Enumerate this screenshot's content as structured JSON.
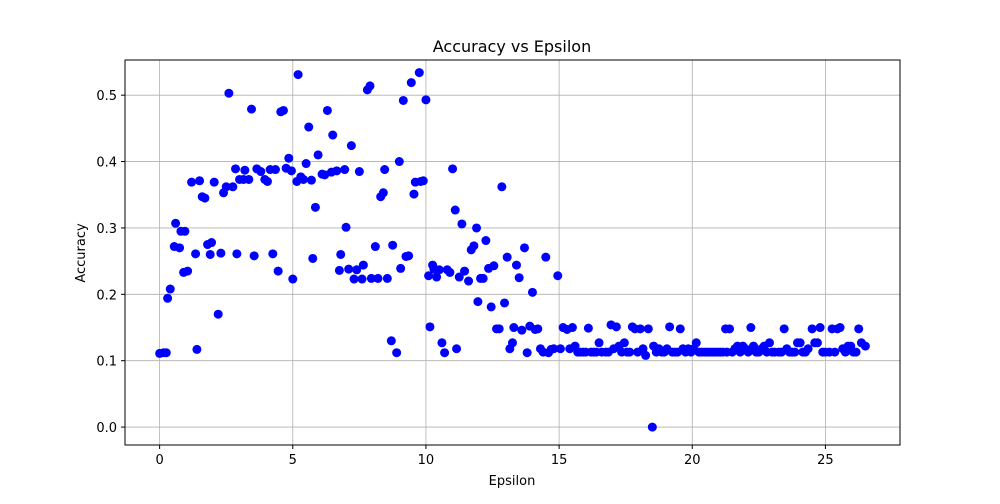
{
  "chart_data": {
    "type": "scatter",
    "title": "Accuracy vs Epsilon",
    "xlabel": "Epsilon",
    "ylabel": "Accuracy",
    "xlim": [
      -1.3,
      27.8
    ],
    "ylim": [
      -0.027,
      0.553
    ],
    "xticks": [
      0,
      5,
      10,
      15,
      20,
      25
    ],
    "yticks": [
      0.0,
      0.1,
      0.2,
      0.3,
      0.4,
      0.5
    ],
    "xtick_labels": [
      "0",
      "5",
      "10",
      "15",
      "20",
      "25"
    ],
    "ytick_labels": [
      "0.0",
      "0.1",
      "0.2",
      "0.3",
      "0.4",
      "0.5"
    ],
    "grid": true,
    "marker_color": "#0000ff",
    "points": [
      [
        0.0,
        0.111
      ],
      [
        0.15,
        0.112
      ],
      [
        0.25,
        0.112
      ],
      [
        0.3,
        0.194
      ],
      [
        0.4,
        0.208
      ],
      [
        0.55,
        0.272
      ],
      [
        0.6,
        0.307
      ],
      [
        0.75,
        0.27
      ],
      [
        0.8,
        0.295
      ],
      [
        0.9,
        0.233
      ],
      [
        0.95,
        0.295
      ],
      [
        1.05,
        0.235
      ],
      [
        1.2,
        0.369
      ],
      [
        1.35,
        0.261
      ],
      [
        1.4,
        0.117
      ],
      [
        1.5,
        0.371
      ],
      [
        1.6,
        0.347
      ],
      [
        1.7,
        0.345
      ],
      [
        1.8,
        0.275
      ],
      [
        1.9,
        0.26
      ],
      [
        1.95,
        0.278
      ],
      [
        2.05,
        0.369
      ],
      [
        2.2,
        0.17
      ],
      [
        2.3,
        0.262
      ],
      [
        2.4,
        0.353
      ],
      [
        2.5,
        0.362
      ],
      [
        2.6,
        0.503
      ],
      [
        2.75,
        0.362
      ],
      [
        2.85,
        0.389
      ],
      [
        2.9,
        0.261
      ],
      [
        3.0,
        0.373
      ],
      [
        3.15,
        0.373
      ],
      [
        3.2,
        0.387
      ],
      [
        3.35,
        0.373
      ],
      [
        3.45,
        0.479
      ],
      [
        3.55,
        0.258
      ],
      [
        3.65,
        0.389
      ],
      [
        3.8,
        0.385
      ],
      [
        3.95,
        0.373
      ],
      [
        4.05,
        0.37
      ],
      [
        4.15,
        0.388
      ],
      [
        4.25,
        0.261
      ],
      [
        4.35,
        0.388
      ],
      [
        4.45,
        0.235
      ],
      [
        4.55,
        0.475
      ],
      [
        4.65,
        0.477
      ],
      [
        4.75,
        0.39
      ],
      [
        4.85,
        0.405
      ],
      [
        4.95,
        0.386
      ],
      [
        5.0,
        0.223
      ],
      [
        5.15,
        0.37
      ],
      [
        5.2,
        0.531
      ],
      [
        5.3,
        0.377
      ],
      [
        5.4,
        0.373
      ],
      [
        5.5,
        0.397
      ],
      [
        5.6,
        0.452
      ],
      [
        5.7,
        0.372
      ],
      [
        5.75,
        0.254
      ],
      [
        5.85,
        0.331
      ],
      [
        5.95,
        0.41
      ],
      [
        6.1,
        0.381
      ],
      [
        6.2,
        0.38
      ],
      [
        6.3,
        0.477
      ],
      [
        6.45,
        0.384
      ],
      [
        6.5,
        0.44
      ],
      [
        6.65,
        0.386
      ],
      [
        6.75,
        0.236
      ],
      [
        6.8,
        0.26
      ],
      [
        6.95,
        0.388
      ],
      [
        7.0,
        0.301
      ],
      [
        7.1,
        0.238
      ],
      [
        7.2,
        0.424
      ],
      [
        7.3,
        0.223
      ],
      [
        7.4,
        0.237
      ],
      [
        7.5,
        0.385
      ],
      [
        7.6,
        0.223
      ],
      [
        7.65,
        0.244
      ],
      [
        7.8,
        0.508
      ],
      [
        7.9,
        0.514
      ],
      [
        7.95,
        0.224
      ],
      [
        8.1,
        0.272
      ],
      [
        8.2,
        0.224
      ],
      [
        8.3,
        0.347
      ],
      [
        8.4,
        0.353
      ],
      [
        8.45,
        0.388
      ],
      [
        8.55,
        0.224
      ],
      [
        8.7,
        0.13
      ],
      [
        8.75,
        0.274
      ],
      [
        8.9,
        0.112
      ],
      [
        9.0,
        0.4
      ],
      [
        9.05,
        0.239
      ],
      [
        9.15,
        0.492
      ],
      [
        9.25,
        0.257
      ],
      [
        9.35,
        0.258
      ],
      [
        9.45,
        0.519
      ],
      [
        9.55,
        0.351
      ],
      [
        9.6,
        0.369
      ],
      [
        9.75,
        0.534
      ],
      [
        9.8,
        0.37
      ],
      [
        9.9,
        0.371
      ],
      [
        10.0,
        0.493
      ],
      [
        10.1,
        0.228
      ],
      [
        10.15,
        0.151
      ],
      [
        10.25,
        0.244
      ],
      [
        10.3,
        0.238
      ],
      [
        10.4,
        0.226
      ],
      [
        10.5,
        0.237
      ],
      [
        10.6,
        0.127
      ],
      [
        10.7,
        0.112
      ],
      [
        10.8,
        0.237
      ],
      [
        10.9,
        0.233
      ],
      [
        11.0,
        0.389
      ],
      [
        11.1,
        0.327
      ],
      [
        11.15,
        0.118
      ],
      [
        11.25,
        0.226
      ],
      [
        11.35,
        0.306
      ],
      [
        11.45,
        0.235
      ],
      [
        11.6,
        0.22
      ],
      [
        11.7,
        0.267
      ],
      [
        11.8,
        0.273
      ],
      [
        11.9,
        0.3
      ],
      [
        11.95,
        0.189
      ],
      [
        12.05,
        0.224
      ],
      [
        12.15,
        0.224
      ],
      [
        12.25,
        0.281
      ],
      [
        12.35,
        0.239
      ],
      [
        12.45,
        0.181
      ],
      [
        12.55,
        0.243
      ],
      [
        12.65,
        0.148
      ],
      [
        12.75,
        0.148
      ],
      [
        12.85,
        0.362
      ],
      [
        12.95,
        0.187
      ],
      [
        13.05,
        0.256
      ],
      [
        13.15,
        0.118
      ],
      [
        13.25,
        0.127
      ],
      [
        13.3,
        0.15
      ],
      [
        13.4,
        0.244
      ],
      [
        13.5,
        0.225
      ],
      [
        13.6,
        0.146
      ],
      [
        13.7,
        0.27
      ],
      [
        13.8,
        0.112
      ],
      [
        13.9,
        0.152
      ],
      [
        14.0,
        0.203
      ],
      [
        14.1,
        0.147
      ],
      [
        14.2,
        0.148
      ],
      [
        14.3,
        0.118
      ],
      [
        14.4,
        0.113
      ],
      [
        14.5,
        0.256
      ],
      [
        14.6,
        0.112
      ],
      [
        14.7,
        0.117
      ],
      [
        14.8,
        0.118
      ],
      [
        14.95,
        0.228
      ],
      [
        15.05,
        0.118
      ],
      [
        15.15,
        0.15
      ],
      [
        15.3,
        0.147
      ],
      [
        15.4,
        0.118
      ],
      [
        15.5,
        0.15
      ],
      [
        15.6,
        0.122
      ],
      [
        15.7,
        0.113
      ],
      [
        15.8,
        0.113
      ],
      [
        15.9,
        0.113
      ],
      [
        16.0,
        0.113
      ],
      [
        16.1,
        0.149
      ],
      [
        16.2,
        0.113
      ],
      [
        16.3,
        0.113
      ],
      [
        16.4,
        0.113
      ],
      [
        16.5,
        0.127
      ],
      [
        16.6,
        0.113
      ],
      [
        16.75,
        0.113
      ],
      [
        16.85,
        0.113
      ],
      [
        16.95,
        0.154
      ],
      [
        17.05,
        0.118
      ],
      [
        17.15,
        0.151
      ],
      [
        17.25,
        0.122
      ],
      [
        17.35,
        0.113
      ],
      [
        17.45,
        0.127
      ],
      [
        17.55,
        0.113
      ],
      [
        17.65,
        0.113
      ],
      [
        17.75,
        0.151
      ],
      [
        17.85,
        0.148
      ],
      [
        17.95,
        0.113
      ],
      [
        18.05,
        0.148
      ],
      [
        18.15,
        0.118
      ],
      [
        18.25,
        0.108
      ],
      [
        18.35,
        0.148
      ],
      [
        18.5,
        0.0
      ],
      [
        18.55,
        0.122
      ],
      [
        18.65,
        0.113
      ],
      [
        18.75,
        0.118
      ],
      [
        18.85,
        0.113
      ],
      [
        18.95,
        0.113
      ],
      [
        19.05,
        0.118
      ],
      [
        19.15,
        0.151
      ],
      [
        19.25,
        0.113
      ],
      [
        19.35,
        0.113
      ],
      [
        19.45,
        0.113
      ],
      [
        19.55,
        0.148
      ],
      [
        19.65,
        0.118
      ],
      [
        19.75,
        0.113
      ],
      [
        19.85,
        0.118
      ],
      [
        19.95,
        0.113
      ],
      [
        20.05,
        0.118
      ],
      [
        20.15,
        0.127
      ],
      [
        20.25,
        0.113
      ],
      [
        20.35,
        0.113
      ],
      [
        20.45,
        0.113
      ],
      [
        20.55,
        0.113
      ],
      [
        20.65,
        0.113
      ],
      [
        20.75,
        0.113
      ],
      [
        20.85,
        0.113
      ],
      [
        20.95,
        0.113
      ],
      [
        21.05,
        0.113
      ],
      [
        21.15,
        0.113
      ],
      [
        21.25,
        0.148
      ],
      [
        21.3,
        0.113
      ],
      [
        21.4,
        0.148
      ],
      [
        21.5,
        0.113
      ],
      [
        21.6,
        0.118
      ],
      [
        21.7,
        0.122
      ],
      [
        21.8,
        0.113
      ],
      [
        21.9,
        0.122
      ],
      [
        22.0,
        0.118
      ],
      [
        22.1,
        0.113
      ],
      [
        22.2,
        0.15
      ],
      [
        22.3,
        0.122
      ],
      [
        22.4,
        0.113
      ],
      [
        22.5,
        0.113
      ],
      [
        22.6,
        0.118
      ],
      [
        22.7,
        0.122
      ],
      [
        22.8,
        0.113
      ],
      [
        22.9,
        0.127
      ],
      [
        23.0,
        0.113
      ],
      [
        23.1,
        0.113
      ],
      [
        23.25,
        0.113
      ],
      [
        23.35,
        0.113
      ],
      [
        23.45,
        0.148
      ],
      [
        23.55,
        0.118
      ],
      [
        23.65,
        0.113
      ],
      [
        23.75,
        0.113
      ],
      [
        23.85,
        0.113
      ],
      [
        23.95,
        0.127
      ],
      [
        24.05,
        0.127
      ],
      [
        24.15,
        0.113
      ],
      [
        24.25,
        0.113
      ],
      [
        24.35,
        0.118
      ],
      [
        24.5,
        0.148
      ],
      [
        24.6,
        0.127
      ],
      [
        24.7,
        0.127
      ],
      [
        24.8,
        0.15
      ],
      [
        24.9,
        0.113
      ],
      [
        25.0,
        0.113
      ],
      [
        25.15,
        0.113
      ],
      [
        25.25,
        0.148
      ],
      [
        25.35,
        0.113
      ],
      [
        25.45,
        0.148
      ],
      [
        25.55,
        0.15
      ],
      [
        25.65,
        0.118
      ],
      [
        25.75,
        0.113
      ],
      [
        25.85,
        0.122
      ],
      [
        25.95,
        0.122
      ],
      [
        26.05,
        0.113
      ],
      [
        26.15,
        0.113
      ],
      [
        26.25,
        0.148
      ],
      [
        26.35,
        0.127
      ],
      [
        26.5,
        0.122
      ]
    ]
  }
}
